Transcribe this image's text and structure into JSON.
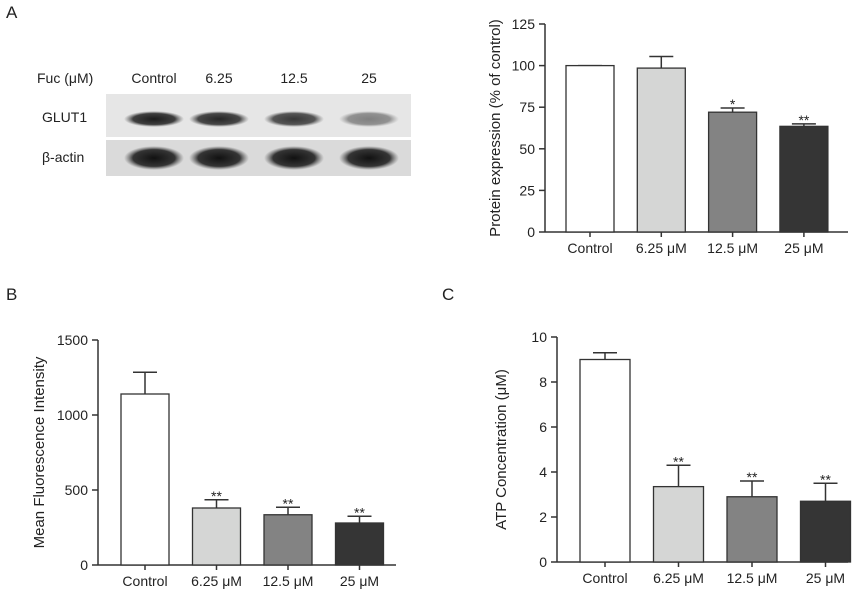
{
  "panels": {
    "a": "A",
    "b": "B",
    "c": "C"
  },
  "blot": {
    "header_label": "Fuc (μM)",
    "lanes": [
      "Control",
      "6.25",
      "12.5",
      "25"
    ],
    "rows": [
      {
        "label": "GLUT1",
        "intensity": [
          0.95,
          0.9,
          0.82,
          0.48
        ]
      },
      {
        "label": "β-actin",
        "intensity": [
          1.0,
          1.0,
          1.0,
          1.0
        ]
      }
    ]
  },
  "colors": {
    "control": "#ffffff",
    "dose_6_25": "#d5d6d5",
    "dose_12_5": "#838383",
    "dose_25": "#353535",
    "axis": "#333333"
  },
  "chart_data": [
    {
      "type": "bar",
      "panel": "A",
      "categories": [
        "Control",
        "6.25 μM",
        "12.5 μM",
        "25 μM"
      ],
      "values": [
        100,
        98.5,
        72,
        63.5
      ],
      "errors": [
        0,
        7,
        2.5,
        1.5
      ],
      "significance": [
        "",
        "",
        "*",
        "**"
      ],
      "title": "",
      "xlabel": "",
      "ylabel": "Protein expression (% of control)",
      "ylim": [
        0,
        125
      ],
      "yticks": [
        0,
        25,
        50,
        75,
        100,
        125
      ],
      "grid": false,
      "legend": "none"
    },
    {
      "type": "bar",
      "panel": "B",
      "categories": [
        "Control",
        "6.25 μM",
        "12.5 μM",
        "25 μM"
      ],
      "values": [
        1140,
        380,
        335,
        280
      ],
      "errors": [
        145,
        55,
        50,
        45
      ],
      "significance": [
        "",
        "**",
        "**",
        "**"
      ],
      "title": "",
      "xlabel": "",
      "ylabel": "Mean Fluorescence Intensity",
      "ylim": [
        0,
        1500
      ],
      "yticks": [
        0,
        500,
        1000,
        1500
      ],
      "grid": false,
      "legend": "none"
    },
    {
      "type": "bar",
      "panel": "C",
      "categories": [
        "Control",
        "6.25 μM",
        "12.5 μM",
        "25 μM"
      ],
      "values": [
        9.0,
        3.35,
        2.9,
        2.7
      ],
      "errors": [
        0.3,
        0.95,
        0.7,
        0.8
      ],
      "significance": [
        "",
        "**",
        "**",
        "**"
      ],
      "title": "",
      "xlabel": "",
      "ylabel": "ATP Concentration (μM)",
      "ylim": [
        0,
        10
      ],
      "yticks": [
        0,
        2,
        4,
        6,
        8,
        10
      ],
      "grid": false,
      "legend": "none"
    }
  ]
}
